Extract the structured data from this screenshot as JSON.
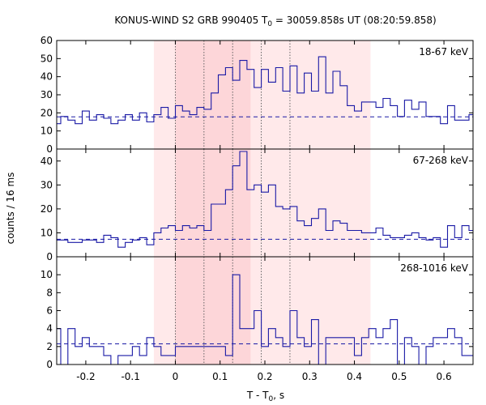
{
  "chart_data": {
    "type": "line",
    "title": {
      "prefix": "KONUS-WIND S2 GRB 990405 T",
      "sub": "0",
      "suffix": " = 30059.858s UT (08:20:59.858)"
    },
    "xlabel": {
      "prefix": "T - T",
      "sub": "0",
      "suffix": ", s"
    },
    "ylabel": "counts / 16 ms",
    "xlim": [
      -0.265,
      0.665
    ],
    "xticks": [
      -0.2,
      -0.1,
      0.0,
      0.1,
      0.2,
      0.3,
      0.4,
      0.5,
      0.6
    ],
    "xtick_labels": [
      "-0.2",
      "-0.1",
      "0",
      "0.1",
      "0.2",
      "0.3",
      "0.4",
      "0.5",
      "0.6"
    ],
    "bin_width": 0.016,
    "bin_start": -0.272,
    "shaded_region_outer": [
      -0.048,
      0.436
    ],
    "shaded_region_inner": [
      0.0,
      0.168
    ],
    "vlines_dotted": [
      0.0,
      0.064,
      0.128,
      0.192,
      0.256
    ],
    "colors": {
      "histogram": "#1a1aa6",
      "background": "#1a1aa6",
      "shade_outer": "#ffe9ea",
      "shade_inner": "#fdd6d9"
    },
    "panels": [
      {
        "label": "18-67 keV",
        "ylim": [
          0,
          60
        ],
        "yticks": [
          0,
          10,
          20,
          30,
          40,
          50,
          60
        ],
        "ytick_labels": [
          "0",
          "10",
          "20",
          "30",
          "40",
          "50",
          "60"
        ],
        "background_level": 17.8,
        "values": [
          14,
          18,
          16,
          14,
          21,
          16,
          19,
          17,
          14,
          16,
          19,
          16,
          20,
          15,
          19,
          23,
          17,
          24,
          21,
          19,
          23,
          22,
          31,
          41,
          45,
          38,
          49,
          44,
          34,
          44,
          37,
          45,
          32,
          46,
          31,
          42,
          32,
          51,
          31,
          43,
          35,
          24,
          21,
          26,
          26,
          23,
          28,
          24,
          18,
          27,
          22,
          26,
          18,
          18,
          14,
          24,
          16,
          16,
          19,
          18,
          19,
          24,
          23,
          18,
          17,
          21,
          14,
          25,
          17,
          12,
          24,
          26,
          15,
          17,
          16,
          17,
          15,
          14,
          16,
          17,
          18,
          25,
          22,
          17,
          15,
          18,
          10
        ]
      },
      {
        "label": "67-268 keV",
        "ylim": [
          0,
          45
        ],
        "yticks": [
          0,
          10,
          20,
          30,
          40
        ],
        "ytick_labels": [
          "0",
          "10",
          "20",
          "30",
          "40"
        ],
        "background_level": 7.3,
        "values": [
          7,
          7,
          6,
          6,
          7,
          7,
          6,
          9,
          8,
          4,
          6,
          7,
          8,
          5,
          10,
          12,
          13,
          11,
          13,
          12,
          13,
          11,
          22,
          22,
          28,
          38,
          44,
          28,
          30,
          27,
          30,
          21,
          20,
          21,
          15,
          13,
          16,
          20,
          11,
          15,
          14,
          11,
          11,
          10,
          10,
          12,
          9,
          8,
          8,
          9,
          10,
          8,
          7,
          8,
          4,
          13,
          8,
          13,
          11,
          8,
          9,
          7,
          7,
          5,
          6,
          6,
          6,
          5,
          8,
          7,
          9,
          14,
          12,
          6,
          8,
          8,
          5,
          9,
          5,
          8,
          7,
          5,
          7,
          7,
          8,
          8,
          9
        ]
      },
      {
        "label": "268-1016 keV",
        "ylim": [
          0,
          12
        ],
        "yticks": [
          0,
          2,
          4,
          6,
          8,
          10
        ],
        "ytick_labels": [
          "0",
          "2",
          "4",
          "6",
          "8",
          "10"
        ],
        "background_level": 2.3,
        "values": [
          4,
          0,
          4,
          2,
          3,
          2,
          2,
          1,
          0,
          1,
          1,
          2,
          1,
          3,
          2,
          1,
          1,
          2,
          2,
          2,
          2,
          2,
          2,
          2,
          1,
          10,
          4,
          4,
          6,
          2,
          4,
          3,
          2,
          6,
          3,
          2,
          5,
          0,
          3,
          3,
          3,
          3,
          1,
          3,
          4,
          3,
          4,
          5,
          0,
          3,
          2,
          0,
          2,
          3,
          3,
          4,
          3,
          1,
          1,
          2,
          1,
          3,
          3,
          4,
          2,
          1,
          2,
          3,
          3,
          2,
          2,
          5,
          2,
          3,
          0,
          4,
          2,
          1,
          4,
          3,
          1,
          4,
          4,
          3,
          3,
          2,
          1
        ]
      }
    ]
  }
}
